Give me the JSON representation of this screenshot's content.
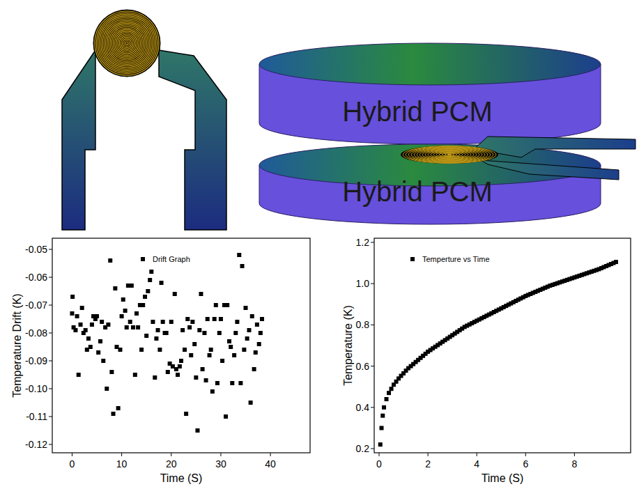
{
  "diagram": {
    "disks": [
      {
        "label": "Hybrid PCM"
      },
      {
        "label": "Hybrid PCM"
      }
    ]
  },
  "chart_data": [
    {
      "type": "scatter",
      "x_label": "Time (S)",
      "y_label": "Temperature Drift (K)",
      "x": [
        0.0,
        0.1,
        0.3,
        0.7,
        1.0,
        1.3,
        1.7,
        2.0,
        2.3,
        2.7,
        3.0,
        3.3,
        3.7,
        4.0,
        4.3,
        4.7,
        5.0,
        5.3,
        5.7,
        6.0,
        6.3,
        6.7,
        7.0,
        7.3,
        7.7,
        8.0,
        8.3,
        8.7,
        9.0,
        9.3,
        9.7,
        10.0,
        10.3,
        10.7,
        11.0,
        11.3,
        11.7,
        12.0,
        12.3,
        12.7,
        13.0,
        13.3,
        13.7,
        14.0,
        14.3,
        14.7,
        15.0,
        15.3,
        15.7,
        16.0,
        16.3,
        16.7,
        17.0,
        17.3,
        17.7,
        18.0,
        18.3,
        18.7,
        19.0,
        19.3,
        19.7,
        20.0,
        20.3,
        20.7,
        21.0,
        21.3,
        21.7,
        22.0,
        22.3,
        22.7,
        23.0,
        23.3,
        23.7,
        24.0,
        24.3,
        24.7,
        25.0,
        25.3,
        25.7,
        26.0,
        26.3,
        26.7,
        27.0,
        27.3,
        27.7,
        28.0,
        28.3,
        28.7,
        29.0,
        29.3,
        29.7,
        30.0,
        30.3,
        30.7,
        31.0,
        31.3,
        31.7,
        32.0,
        32.3,
        32.7,
        33.0,
        33.3,
        33.7,
        34.0,
        34.3,
        34.7,
        35.0,
        35.3,
        35.7,
        36.0,
        36.3,
        36.7,
        37.0,
        37.3,
        37.7,
        38.0,
        38.3
      ],
      "series": [
        {
          "name": "Drift Graph",
          "color": "#000000",
          "marker": "square",
          "values": [
            -0.073,
            -0.067,
            -0.078,
            -0.079,
            -0.074,
            -0.095,
            -0.077,
            -0.071,
            -0.08,
            -0.079,
            -0.086,
            -0.082,
            -0.085,
            -0.077,
            -0.074,
            -0.075,
            -0.074,
            -0.087,
            -0.083,
            -0.076,
            -0.09,
            -0.078,
            -0.1,
            -0.077,
            -0.054,
            -0.094,
            -0.109,
            -0.064,
            -0.085,
            -0.107,
            -0.086,
            -0.074,
            -0.068,
            -0.072,
            -0.078,
            -0.063,
            -0.076,
            -0.063,
            -0.078,
            -0.095,
            -0.073,
            -0.078,
            -0.07,
            -0.086,
            -0.07,
            -0.067,
            -0.081,
            -0.065,
            -0.061,
            -0.058,
            -0.076,
            -0.096,
            -0.082,
            -0.079,
            -0.086,
            -0.062,
            -0.076,
            -0.08,
            -0.08,
            -0.094,
            -0.091,
            -0.076,
            -0.092,
            -0.066,
            -0.093,
            -0.095,
            -0.092,
            -0.09,
            -0.079,
            -0.086,
            -0.109,
            -0.075,
            -0.078,
            -0.088,
            -0.076,
            -0.084,
            -0.096,
            -0.115,
            -0.079,
            -0.066,
            -0.093,
            -0.08,
            -0.097,
            -0.075,
            -0.088,
            -0.086,
            -0.101,
            -0.075,
            -0.07,
            -0.098,
            -0.08,
            -0.075,
            -0.09,
            -0.07,
            -0.11,
            -0.07,
            -0.083,
            -0.085,
            -0.098,
            -0.088,
            -0.08,
            -0.076,
            -0.052,
            -0.098,
            -0.056,
            -0.086,
            -0.071,
            -0.082,
            -0.079,
            -0.105,
            -0.074,
            -0.093,
            -0.087,
            -0.077,
            -0.084,
            -0.08,
            -0.075
          ]
        }
      ],
      "xlim": [
        -4,
        48
      ],
      "ylim": [
        -0.123,
        -0.046
      ],
      "xticks": [
        0,
        10,
        20,
        30,
        40
      ],
      "yticks": [
        -0.12,
        -0.11,
        {
          "value": -0.1,
          "label": "-0.10"
        },
        -0.09,
        -0.08,
        -0.07,
        -0.06,
        -0.05
      ],
      "legend": "upper center"
    },
    {
      "type": "scatter",
      "x_label": "Time (S)",
      "y_label": "Temperature (K)",
      "x": [
        0.05,
        0.1,
        0.15,
        0.2,
        0.3,
        0.4,
        0.5,
        0.6,
        0.7,
        0.8,
        0.9,
        1.0,
        1.1,
        1.2,
        1.3,
        1.4,
        1.5,
        1.6,
        1.7,
        1.8,
        1.9,
        2.0,
        2.1,
        2.2,
        2.3,
        2.4,
        2.5,
        2.6,
        2.7,
        2.8,
        2.9,
        3.0,
        3.1,
        3.2,
        3.3,
        3.4,
        3.5,
        3.6,
        3.7,
        3.8,
        3.9,
        4.0,
        4.1,
        4.2,
        4.3,
        4.4,
        4.5,
        4.6,
        4.7,
        4.8,
        4.9,
        5.0,
        5.1,
        5.2,
        5.3,
        5.4,
        5.5,
        5.6,
        5.7,
        5.8,
        5.9,
        6.0,
        6.1,
        6.2,
        6.3,
        6.4,
        6.5,
        6.6,
        6.7,
        6.8,
        6.9,
        7.0,
        7.1,
        7.2,
        7.3,
        7.4,
        7.5,
        7.6,
        7.7,
        7.8,
        7.9,
        8.0,
        8.1,
        8.2,
        8.3,
        8.4,
        8.5,
        8.6,
        8.7,
        8.8,
        8.9,
        9.0,
        9.1,
        9.2,
        9.3,
        9.4,
        9.5,
        9.6,
        9.7
      ],
      "series": [
        {
          "name": "Temperture vs Time",
          "color": "#000000",
          "marker": "square",
          "values": [
            0.22,
            0.3,
            0.36,
            0.4,
            0.44,
            0.47,
            0.49,
            0.51,
            0.525,
            0.54,
            0.553,
            0.565,
            0.578,
            0.59,
            0.6,
            0.61,
            0.62,
            0.63,
            0.64,
            0.65,
            0.66,
            0.67,
            0.678,
            0.686,
            0.694,
            0.702,
            0.71,
            0.718,
            0.726,
            0.734,
            0.742,
            0.75,
            0.758,
            0.766,
            0.774,
            0.782,
            0.79,
            0.796,
            0.802,
            0.808,
            0.814,
            0.82,
            0.826,
            0.832,
            0.838,
            0.844,
            0.85,
            0.856,
            0.862,
            0.868,
            0.874,
            0.88,
            0.886,
            0.892,
            0.898,
            0.904,
            0.91,
            0.916,
            0.922,
            0.928,
            0.934,
            0.94,
            0.945,
            0.95,
            0.955,
            0.96,
            0.965,
            0.97,
            0.975,
            0.98,
            0.985,
            0.99,
            0.994,
            0.998,
            1.002,
            1.006,
            1.01,
            1.014,
            1.018,
            1.022,
            1.026,
            1.03,
            1.034,
            1.038,
            1.042,
            1.046,
            1.05,
            1.054,
            1.058,
            1.062,
            1.066,
            1.07,
            1.075,
            1.08,
            1.085,
            1.09,
            1.095,
            1.1,
            1.105
          ]
        }
      ],
      "xlim": [
        -0.2,
        10.3
      ],
      "ylim": [
        0.18,
        1.22
      ],
      "xticks": [
        0,
        2,
        4,
        6,
        8
      ],
      "yticks": [
        0.2,
        0.4,
        0.6,
        0.8,
        {
          "value": 1.0,
          "label": "1.0"
        },
        1.2
      ],
      "legend": "upper left"
    }
  ]
}
